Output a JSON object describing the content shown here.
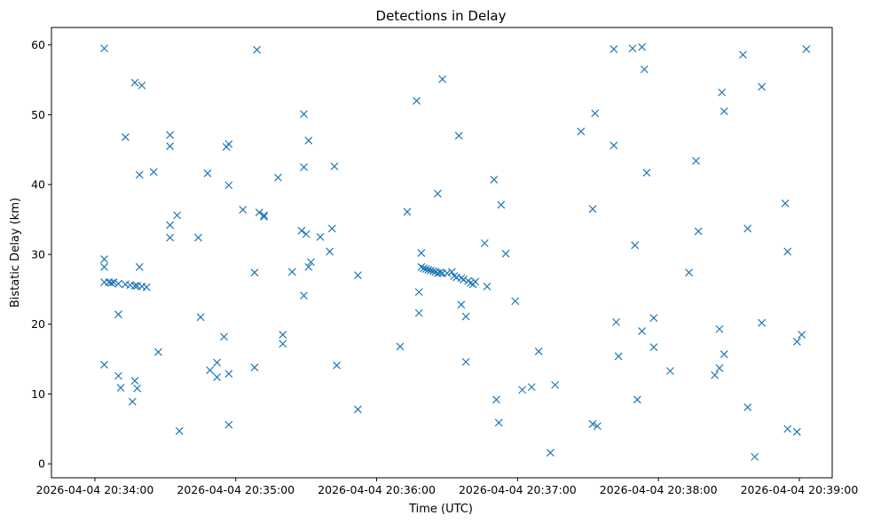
{
  "chart_data": {
    "type": "scatter",
    "title": "Detections in Delay",
    "xlabel": "Time (UTC)",
    "ylabel": "Bistatic Delay (km)",
    "marker": "x",
    "color": "#1f77b4",
    "grid": false,
    "xlim_seconds_from_2026-04-04T20:34:00": [
      -18.5,
      314
    ],
    "ylim": [
      -2,
      62.5
    ],
    "x_ticks": [
      "2026-04-04 20:34:00",
      "2026-04-04 20:35:00",
      "2026-04-04 20:36:00",
      "2026-04-04 20:37:00",
      "2026-04-04 20:38:00",
      "2026-04-04 20:39:00"
    ],
    "y_ticks": [
      0,
      10,
      20,
      30,
      40,
      50,
      60
    ],
    "points": [
      [
        4,
        59.5
      ],
      [
        4,
        26
      ],
      [
        4,
        29.3
      ],
      [
        4,
        28.2
      ],
      [
        4,
        14.2
      ],
      [
        6,
        26
      ],
      [
        7,
        25.9
      ],
      [
        8,
        26
      ],
      [
        10,
        25.8
      ],
      [
        10,
        12.6
      ],
      [
        10,
        21.4
      ],
      [
        11,
        10.9
      ],
      [
        13,
        25.7
      ],
      [
        13,
        46.8
      ],
      [
        15,
        25.6
      ],
      [
        16,
        8.9
      ],
      [
        17,
        11.9
      ],
      [
        17,
        25.5
      ],
      [
        17,
        54.6
      ],
      [
        18,
        10.8
      ],
      [
        18,
        25.5
      ],
      [
        19,
        28.2
      ],
      [
        19,
        41.4
      ],
      [
        20,
        25.4
      ],
      [
        20,
        54.2
      ],
      [
        22,
        25.3
      ],
      [
        25,
        41.8
      ],
      [
        27,
        16
      ],
      [
        32,
        45.5
      ],
      [
        32,
        47.1
      ],
      [
        32,
        34.2
      ],
      [
        32,
        32.4
      ],
      [
        35,
        35.6
      ],
      [
        36,
        4.7
      ],
      [
        44,
        32.4
      ],
      [
        45,
        21
      ],
      [
        48,
        41.6
      ],
      [
        49,
        13.4
      ],
      [
        52,
        12.4
      ],
      [
        52,
        14.5
      ],
      [
        55,
        18.2
      ],
      [
        56,
        45.4
      ],
      [
        57,
        45.8
      ],
      [
        57,
        39.9
      ],
      [
        57,
        5.6
      ],
      [
        57,
        12.9
      ],
      [
        63,
        36.4
      ],
      [
        68,
        13.8
      ],
      [
        68,
        27.4
      ],
      [
        69,
        59.3
      ],
      [
        70,
        36
      ],
      [
        72,
        35.4
      ],
      [
        72,
        35.6
      ],
      [
        78,
        41
      ],
      [
        80,
        18.5
      ],
      [
        80,
        17.2
      ],
      [
        84,
        27.5
      ],
      [
        88,
        33.4
      ],
      [
        89,
        50.1
      ],
      [
        89,
        42.5
      ],
      [
        89,
        24.1
      ],
      [
        90,
        32.9
      ],
      [
        91,
        28.2
      ],
      [
        91,
        46.3
      ],
      [
        92,
        28.9
      ],
      [
        96,
        32.5
      ],
      [
        100,
        30.4
      ],
      [
        101,
        33.7
      ],
      [
        102,
        42.6
      ],
      [
        103,
        14.1
      ],
      [
        112,
        27
      ],
      [
        112,
        7.8
      ],
      [
        130,
        16.8
      ],
      [
        133,
        36.1
      ],
      [
        137,
        52
      ],
      [
        138,
        24.6
      ],
      [
        138,
        21.6
      ],
      [
        139,
        30.2
      ],
      [
        139,
        28.2
      ],
      [
        140,
        28
      ],
      [
        141,
        27.9
      ],
      [
        142,
        27.8
      ],
      [
        143,
        27.7
      ],
      [
        144,
        27.6
      ],
      [
        145,
        27.5
      ],
      [
        146,
        38.7
      ],
      [
        146,
        27.3
      ],
      [
        147,
        27.4
      ],
      [
        148,
        55.1
      ],
      [
        148,
        27.3
      ],
      [
        150,
        27.3
      ],
      [
        152,
        27.5
      ],
      [
        153,
        26.9
      ],
      [
        154,
        26.7
      ],
      [
        155,
        47
      ],
      [
        156,
        26.6
      ],
      [
        156,
        22.8
      ],
      [
        157,
        26.4
      ],
      [
        158,
        21.1
      ],
      [
        158,
        14.6
      ],
      [
        159,
        26.2
      ],
      [
        160,
        25.9
      ],
      [
        161,
        25.7
      ],
      [
        162,
        26.1
      ],
      [
        166,
        31.6
      ],
      [
        167,
        25.4
      ],
      [
        170,
        40.7
      ],
      [
        171,
        9.2
      ],
      [
        172,
        5.9
      ],
      [
        173,
        37.1
      ],
      [
        175,
        30.1
      ],
      [
        179,
        23.3
      ],
      [
        182,
        10.6
      ],
      [
        186,
        11
      ],
      [
        189,
        16.1
      ],
      [
        194,
        1.6
      ],
      [
        196,
        11.3
      ],
      [
        207,
        47.6
      ],
      [
        212,
        36.5
      ],
      [
        212,
        5.7
      ],
      [
        213,
        50.2
      ],
      [
        214,
        5.4
      ],
      [
        221,
        59.4
      ],
      [
        221,
        45.6
      ],
      [
        222,
        20.3
      ],
      [
        223,
        15.4
      ],
      [
        229,
        59.5
      ],
      [
        230,
        31.3
      ],
      [
        231,
        9.2
      ],
      [
        233,
        59.7
      ],
      [
        233,
        19
      ],
      [
        234,
        56.5
      ],
      [
        235,
        41.7
      ],
      [
        238,
        20.9
      ],
      [
        238,
        16.7
      ],
      [
        245,
        13.3
      ],
      [
        253,
        27.4
      ],
      [
        256,
        43.4
      ],
      [
        257,
        33.3
      ],
      [
        264,
        12.7
      ],
      [
        266,
        19.3
      ],
      [
        266,
        13.7
      ],
      [
        267,
        53.2
      ],
      [
        268,
        50.5
      ],
      [
        268,
        15.7
      ],
      [
        276,
        58.6
      ],
      [
        278,
        33.7
      ],
      [
        278,
        8.1
      ],
      [
        281,
        1
      ],
      [
        284,
        54
      ],
      [
        284,
        20.2
      ],
      [
        294,
        37.3
      ],
      [
        295,
        30.4
      ],
      [
        295,
        5
      ],
      [
        299,
        17.5
      ],
      [
        299,
        4.6
      ],
      [
        301,
        18.5
      ],
      [
        303,
        59.4
      ]
    ]
  }
}
